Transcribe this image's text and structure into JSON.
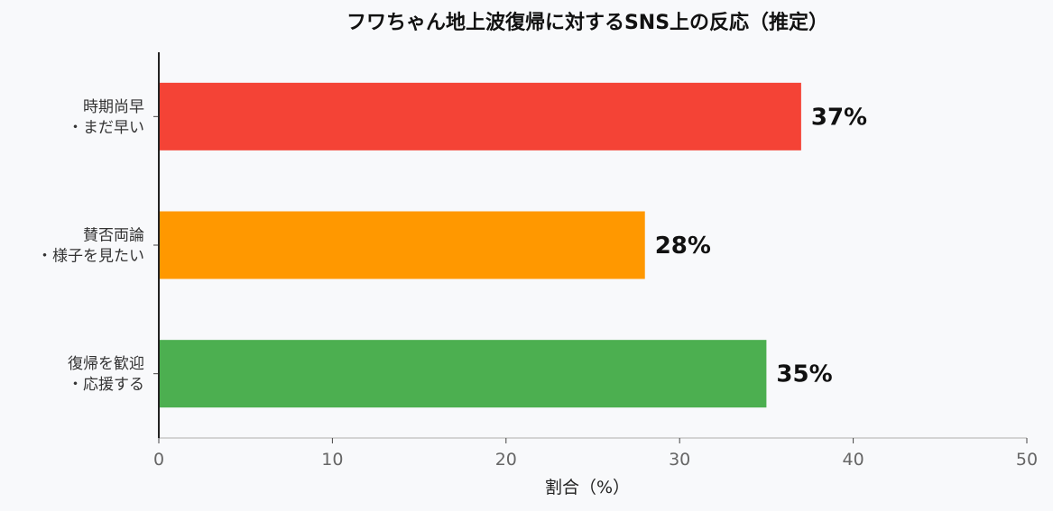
{
  "chart_data": {
    "type": "bar",
    "orientation": "horizontal",
    "title": "フワちゃん地上波復帰に対するSNS上の反応（推定）",
    "xlabel": "割合（%）",
    "ylabel": "",
    "xlim": [
      0,
      50
    ],
    "xticks": [
      0,
      10,
      20,
      30,
      40,
      50
    ],
    "categories": [
      [
        "時期尚早",
        "・まだ早い"
      ],
      [
        "賛否両論",
        "・様子を見たい"
      ],
      [
        "復帰を歓迎",
        "・応援する"
      ]
    ],
    "values": [
      37,
      28,
      35
    ],
    "data_labels": [
      "37%",
      "28%",
      "35%"
    ],
    "colors": [
      "#f44336",
      "#ff9800",
      "#4caf50"
    ],
    "grid": false,
    "legend": "none"
  }
}
